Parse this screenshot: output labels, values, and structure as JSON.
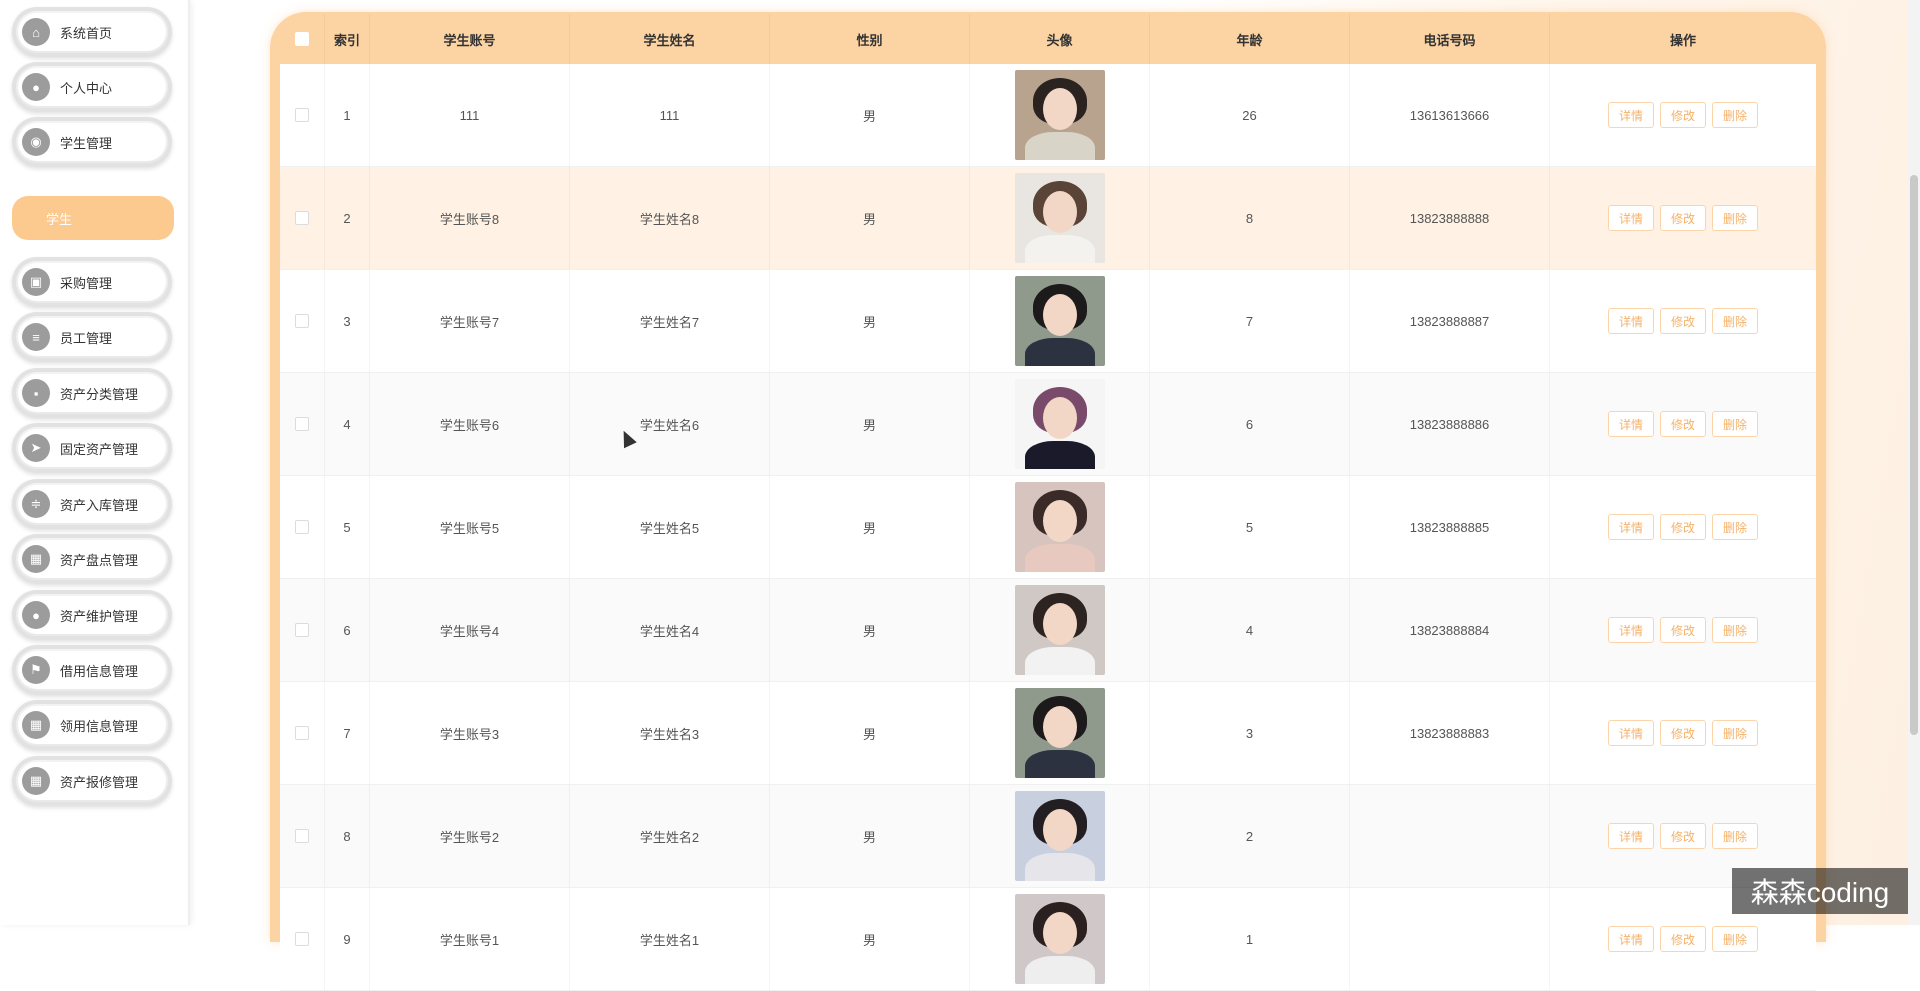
{
  "sidebar": {
    "items": [
      {
        "label": "系统首页",
        "icon": "home-icon",
        "glyph": "⌂"
      },
      {
        "label": "个人中心",
        "icon": "user-icon",
        "glyph": "●"
      },
      {
        "label": "学生管理",
        "icon": "bulb-icon",
        "glyph": "◉"
      },
      {
        "label": "采购管理",
        "icon": "briefcase-icon",
        "glyph": "▣"
      },
      {
        "label": "员工管理",
        "icon": "list-icon",
        "glyph": "≡"
      },
      {
        "label": "资产分类管理",
        "icon": "chat-icon",
        "glyph": "▪"
      },
      {
        "label": "固定资产管理",
        "icon": "send-icon",
        "glyph": "➤"
      },
      {
        "label": "资产入库管理",
        "icon": "sliders-icon",
        "glyph": "≑"
      },
      {
        "label": "资产盘点管理",
        "icon": "grid-icon",
        "glyph": "▦"
      },
      {
        "label": "资产维护管理",
        "icon": "user-icon",
        "glyph": "●"
      },
      {
        "label": "借用信息管理",
        "icon": "flag-icon",
        "glyph": "⚑"
      },
      {
        "label": "领用信息管理",
        "icon": "apps-icon",
        "glyph": "▦"
      },
      {
        "label": "资产报修管理",
        "icon": "apps-icon",
        "glyph": "▦"
      }
    ],
    "submenu": {
      "label": "学生"
    }
  },
  "table": {
    "headers": {
      "index": "索引",
      "account": "学生账号",
      "name": "学生姓名",
      "sex": "性别",
      "avatar": "头像",
      "age": "年龄",
      "phone": "电话号码",
      "ops": "操作"
    },
    "rows": [
      {
        "index": "1",
        "account": "111",
        "name": "111",
        "sex": "男",
        "age": "26",
        "phone": "13613613666"
      },
      {
        "index": "2",
        "account": "学生账号8",
        "name": "学生姓名8",
        "sex": "男",
        "age": "8",
        "phone": "13823888888"
      },
      {
        "index": "3",
        "account": "学生账号7",
        "name": "学生姓名7",
        "sex": "男",
        "age": "7",
        "phone": "13823888887"
      },
      {
        "index": "4",
        "account": "学生账号6",
        "name": "学生姓名6",
        "sex": "男",
        "age": "6",
        "phone": "13823888886"
      },
      {
        "index": "5",
        "account": "学生账号5",
        "name": "学生姓名5",
        "sex": "男",
        "age": "5",
        "phone": "13823888885"
      },
      {
        "index": "6",
        "account": "学生账号4",
        "name": "学生姓名4",
        "sex": "男",
        "age": "4",
        "phone": "13823888884"
      },
      {
        "index": "7",
        "account": "学生账号3",
        "name": "学生姓名3",
        "sex": "男",
        "age": "3",
        "phone": "13823888883"
      },
      {
        "index": "8",
        "account": "学生账号2",
        "name": "学生姓名2",
        "sex": "男",
        "age": "2",
        "phone": ""
      },
      {
        "index": "9",
        "account": "学生账号1",
        "name": "学生姓名1",
        "sex": "男",
        "age": "1",
        "phone": ""
      }
    ],
    "buttons": {
      "detail": "详情",
      "edit": "修改",
      "delete": "删除"
    }
  },
  "watermark": "森森coding",
  "colors": {
    "accent": "#fcc98f",
    "button_text": "#f5b26a",
    "header_bg": "#fcd3a3"
  }
}
